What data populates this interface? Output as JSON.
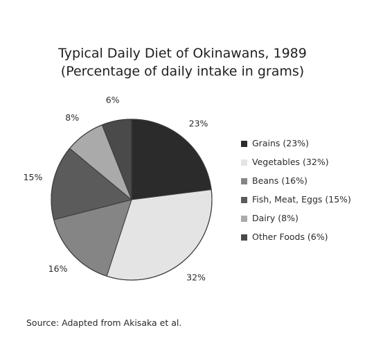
{
  "chart_data": {
    "type": "pie",
    "title": "Typical Daily Diet of Okinawans, 1989",
    "subtitle": "(Percentage of daily intake in grams)",
    "categories": [
      "Grains",
      "Vegetables",
      "Beans",
      "Fish, Meat, Eggs",
      "Dairy",
      "Other Foods"
    ],
    "values": [
      23,
      32,
      16,
      15,
      8,
      6
    ],
    "slice_labels": [
      "23%",
      "32%",
      "16%",
      "15%",
      "8%",
      "6%"
    ],
    "legend_labels": [
      "Grains (23%)",
      "Vegetables (32%)",
      "Beans (16%)",
      "Fish, Meat, Eggs (15%)",
      "Dairy (8%)",
      "Other Foods (6%)"
    ],
    "colors": [
      "#2b2b2b",
      "#e4e4e4",
      "#858585",
      "#5b5b5b",
      "#aaaaaa",
      "#4a4a4a"
    ],
    "legend_placement": "right",
    "start_angle": "12 o'clock",
    "direction": "clockwise"
  },
  "source": "Source: Adapted from Akisaka et al."
}
